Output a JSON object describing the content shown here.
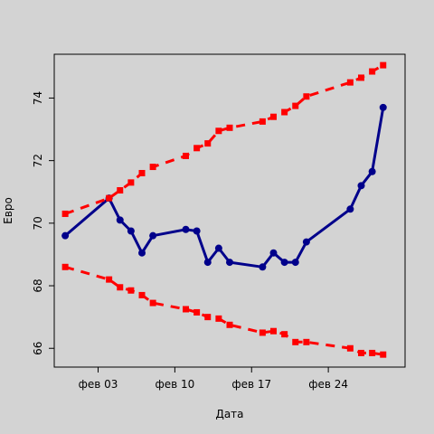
{
  "chart_data": {
    "type": "line",
    "xlabel": "Дата",
    "ylabel": "Евро",
    "x_ticks": [
      {
        "date": "2014-02-03",
        "label": "фев 03"
      },
      {
        "date": "2014-02-10",
        "label": "фев 10"
      },
      {
        "date": "2014-02-17",
        "label": "фев 17"
      },
      {
        "date": "2014-02-24",
        "label": "фев 24"
      }
    ],
    "y_ticks": [
      66,
      68,
      70,
      72,
      74
    ],
    "ylim": [
      65.4,
      75.4
    ],
    "xlim": [
      "2014-01-30",
      "2014-03-03"
    ],
    "grid": false,
    "legend": "none",
    "series": [
      {
        "style": "solid",
        "color": "#00008b",
        "marker": "circle",
        "points": [
          {
            "x": "2014-01-31",
            "y": 69.6
          },
          {
            "x": "2014-02-04",
            "y": 70.8
          },
          {
            "x": "2014-02-05",
            "y": 70.1
          },
          {
            "x": "2014-02-06",
            "y": 69.75
          },
          {
            "x": "2014-02-07",
            "y": 69.05
          },
          {
            "x": "2014-02-08",
            "y": 69.6
          },
          {
            "x": "2014-02-11",
            "y": 69.8
          },
          {
            "x": "2014-02-12",
            "y": 69.75
          },
          {
            "x": "2014-02-13",
            "y": 68.75
          },
          {
            "x": "2014-02-14",
            "y": 69.2
          },
          {
            "x": "2014-02-15",
            "y": 68.75
          },
          {
            "x": "2014-02-18",
            "y": 68.6
          },
          {
            "x": "2014-02-19",
            "y": 69.05
          },
          {
            "x": "2014-02-20",
            "y": 68.75
          },
          {
            "x": "2014-02-21",
            "y": 68.75
          },
          {
            "x": "2014-02-22",
            "y": 69.4
          },
          {
            "x": "2014-02-26",
            "y": 70.45
          },
          {
            "x": "2014-02-27",
            "y": 71.2
          },
          {
            "x": "2014-02-28",
            "y": 71.65
          },
          {
            "x": "2014-03-01",
            "y": 73.7
          }
        ]
      },
      {
        "style": "dashed",
        "color": "#ff0000",
        "marker": "square",
        "points": [
          {
            "x": "2014-01-31",
            "y": 70.3
          },
          {
            "x": "2014-02-04",
            "y": 70.8
          },
          {
            "x": "2014-02-05",
            "y": 71.05
          },
          {
            "x": "2014-02-06",
            "y": 71.3
          },
          {
            "x": "2014-02-07",
            "y": 71.6
          },
          {
            "x": "2014-02-08",
            "y": 71.8
          },
          {
            "x": "2014-02-11",
            "y": 72.15
          },
          {
            "x": "2014-02-12",
            "y": 72.4
          },
          {
            "x": "2014-02-13",
            "y": 72.55
          },
          {
            "x": "2014-02-14",
            "y": 72.95
          },
          {
            "x": "2014-02-15",
            "y": 73.05
          },
          {
            "x": "2014-02-18",
            "y": 73.25
          },
          {
            "x": "2014-02-19",
            "y": 73.4
          },
          {
            "x": "2014-02-20",
            "y": 73.55
          },
          {
            "x": "2014-02-21",
            "y": 73.75
          },
          {
            "x": "2014-02-22",
            "y": 74.05
          },
          {
            "x": "2014-02-26",
            "y": 74.5
          },
          {
            "x": "2014-02-27",
            "y": 74.65
          },
          {
            "x": "2014-02-28",
            "y": 74.85
          },
          {
            "x": "2014-03-01",
            "y": 75.05
          }
        ]
      },
      {
        "style": "dashed",
        "color": "#ff0000",
        "marker": "square",
        "points": [
          {
            "x": "2014-01-31",
            "y": 68.6
          },
          {
            "x": "2014-02-04",
            "y": 68.2
          },
          {
            "x": "2014-02-05",
            "y": 67.95
          },
          {
            "x": "2014-02-06",
            "y": 67.85
          },
          {
            "x": "2014-02-07",
            "y": 67.7
          },
          {
            "x": "2014-02-08",
            "y": 67.45
          },
          {
            "x": "2014-02-11",
            "y": 67.25
          },
          {
            "x": "2014-02-12",
            "y": 67.15
          },
          {
            "x": "2014-02-13",
            "y": 67.0
          },
          {
            "x": "2014-02-14",
            "y": 66.95
          },
          {
            "x": "2014-02-15",
            "y": 66.75
          },
          {
            "x": "2014-02-18",
            "y": 66.5
          },
          {
            "x": "2014-02-19",
            "y": 66.55
          },
          {
            "x": "2014-02-20",
            "y": 66.45
          },
          {
            "x": "2014-02-21",
            "y": 66.2
          },
          {
            "x": "2014-02-22",
            "y": 66.2
          },
          {
            "x": "2014-02-26",
            "y": 66.0
          },
          {
            "x": "2014-02-27",
            "y": 65.85
          },
          {
            "x": "2014-02-28",
            "y": 65.85
          },
          {
            "x": "2014-03-01",
            "y": 65.8
          }
        ]
      }
    ]
  }
}
